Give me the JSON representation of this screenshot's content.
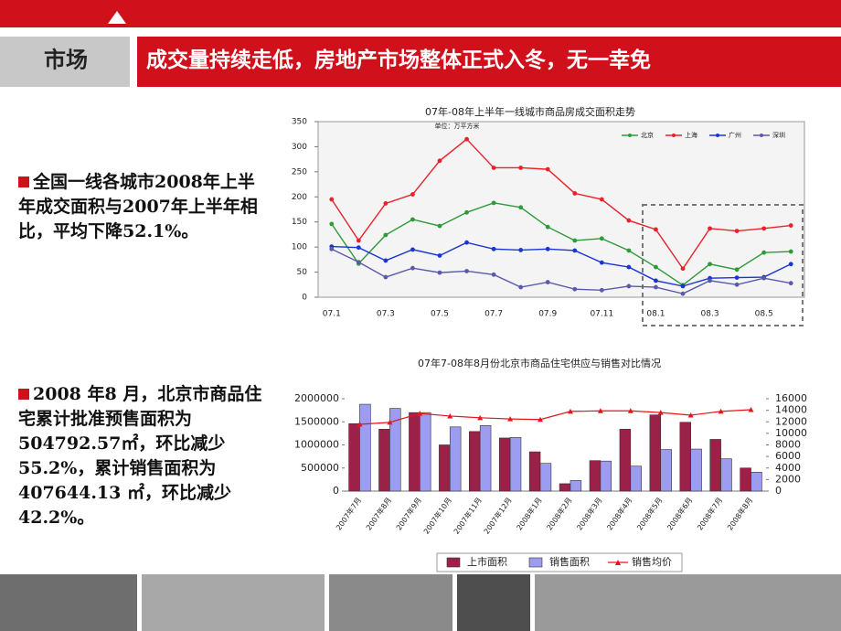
{
  "header": {
    "section": "市场",
    "title": "成交量持续走低，房地产市场整体正式入冬，无一幸免"
  },
  "bullets": [
    "全国一线各城市2008年上半年成交面积与2007年上半年相比，平均下降52.1%。",
    "2008 年8 月，北京市商品住宅累计批准预售面积为504792.57㎡，环比减少55.2%，累计销售面积为407644.13 ㎡，环比减少42.2%。"
  ],
  "chart_data": [
    {
      "type": "line",
      "title": "07年-08年上半年一线城市商品房成交面积走势",
      "subtitle": "单位：万平方米",
      "categories": [
        "07.1",
        null,
        "07.3",
        null,
        "07.5",
        null,
        "07.7",
        null,
        "07.9",
        null,
        "07.11",
        null,
        "08.1",
        null,
        "08.3",
        null,
        "08.5",
        null
      ],
      "ylim": [
        0,
        350
      ],
      "yticks": [
        0,
        50,
        100,
        150,
        200,
        250,
        300,
        350
      ],
      "series": [
        {
          "name": "北京",
          "color": "#2e9b3a",
          "values": [
            146,
            67,
            124,
            155,
            142,
            169,
            188,
            179,
            140,
            113,
            117,
            93,
            60,
            24,
            66,
            55,
            89,
            91
          ]
        },
        {
          "name": "上海",
          "color": "#e8222a",
          "values": [
            195,
            113,
            187,
            205,
            272,
            315,
            258,
            258,
            255,
            207,
            195,
            153,
            135,
            57,
            137,
            132,
            137,
            143
          ]
        },
        {
          "name": "广州",
          "color": "#1a35d6",
          "values": [
            101,
            99,
            73,
            95,
            83,
            109,
            96,
            94,
            96,
            93,
            69,
            60,
            33,
            22,
            38,
            39,
            40,
            66
          ]
        },
        {
          "name": "深圳",
          "color": "#5a5aa8",
          "values": [
            96,
            70,
            40,
            58,
            49,
            52,
            45,
            20,
            30,
            16,
            14,
            22,
            20,
            7,
            33,
            25,
            38,
            28
          ]
        }
      ]
    },
    {
      "type": "bar",
      "title": "07年7-08年8月份北京市商品住宅供应与销售对比情况",
      "categories": [
        "2007年7月",
        "2007年8月",
        "2007年9月",
        "2007年10月",
        "2007年11月",
        "2007年12月",
        "2008年1月",
        "2008年2月",
        "2008年3月",
        "2008年4月",
        "2008年5月",
        "2008年6月",
        "2008年7月",
        "2008年8月"
      ],
      "ylim": [
        0,
        2000000
      ],
      "yticks": [
        0,
        500000,
        1000000,
        1500000,
        2000000
      ],
      "y2lim": [
        0,
        16000
      ],
      "y2ticks": [
        0,
        2000,
        4000,
        6000,
        8000,
        10000,
        12000,
        14000,
        16000
      ],
      "series": [
        {
          "name": "上市面积",
          "color": "#9b2149",
          "values": [
            1460000,
            1340000,
            1700000,
            1000000,
            1290000,
            1150000,
            850000,
            160000,
            660000,
            1340000,
            1650000,
            1490000,
            1120000,
            500000
          ]
        },
        {
          "name": "销售面积",
          "color": "#9c9cf0",
          "values": [
            1880000,
            1790000,
            1700000,
            1390000,
            1420000,
            1160000,
            600000,
            230000,
            650000,
            540000,
            900000,
            910000,
            700000,
            410000
          ]
        },
        {
          "name": "销售均价",
          "color": "#e8141c",
          "axis": "y2",
          "values": [
            11560,
            11900,
            13450,
            13000,
            12700,
            12500,
            12400,
            13800,
            13900,
            13900,
            13600,
            13150,
            13800,
            14100
          ]
        }
      ]
    }
  ]
}
